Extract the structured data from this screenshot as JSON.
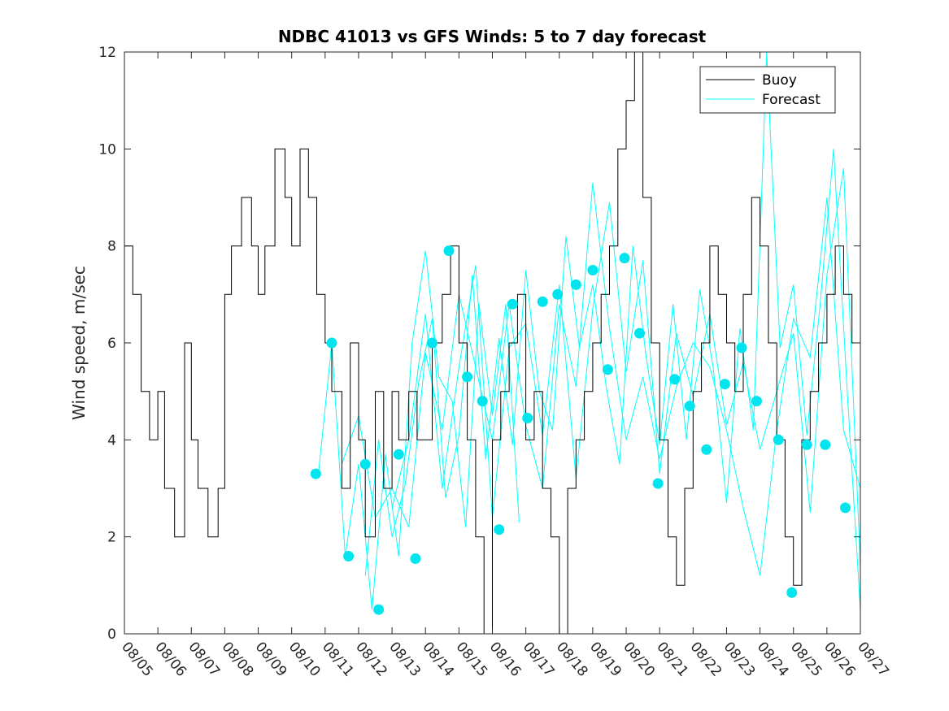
{
  "chart_data": {
    "type": "line",
    "title": "NDBC 41013 vs GFS Winds: 5 to 7 day forecast",
    "xlabel": "",
    "ylabel": "Wind speed, m/sec",
    "xlim": [
      0,
      22
    ],
    "ylim": [
      0,
      12
    ],
    "yticks": [
      0,
      2,
      4,
      6,
      8,
      10,
      12
    ],
    "ytick_labels": [
      "0",
      "2",
      "4",
      "6",
      "8",
      "10",
      "12"
    ],
    "xtick_labels": [
      "08/05",
      "08/06",
      "08/07",
      "08/08",
      "08/09",
      "08/10",
      "08/11",
      "08/12",
      "08/13",
      "08/14",
      "08/15",
      "08/16",
      "08/17",
      "08/18",
      "08/19",
      "08/20",
      "08/21",
      "08/22",
      "08/23",
      "08/24",
      "08/25",
      "08/26",
      "08/27"
    ],
    "x_unit": "days since 08/05 00Z",
    "legend": {
      "position": "top-right",
      "entries": [
        "Buoy",
        "Forecast"
      ]
    },
    "colors": {
      "buoy": "#000000",
      "forecast": "#00ffff",
      "marker": "#00e5ee",
      "axes": "#262626"
    },
    "series": [
      {
        "name": "Buoy",
        "style": "step",
        "x": [
          0.0,
          0.25,
          0.5,
          0.75,
          1.0,
          1.2,
          1.5,
          1.8,
          2.0,
          2.2,
          2.5,
          2.8,
          3.0,
          3.2,
          3.5,
          3.8,
          4.0,
          4.2,
          4.5,
          4.8,
          5.0,
          5.25,
          5.5,
          5.75,
          6.0,
          6.2,
          6.5,
          6.75,
          7.0,
          7.2,
          7.5,
          7.75,
          8.0,
          8.2,
          8.5,
          8.75,
          9.0,
          9.2,
          9.5,
          9.75,
          10.0,
          10.25,
          10.5,
          10.75,
          11.0,
          11.25,
          11.5,
          11.75,
          12.0,
          12.25,
          12.5,
          12.75,
          13.0,
          13.25,
          13.5,
          13.75,
          14.0,
          14.25,
          14.5,
          14.75,
          15.0,
          15.25,
          15.5,
          15.75,
          16.0,
          16.25,
          16.5,
          16.75,
          17.0,
          17.25,
          17.5,
          17.75,
          18.0,
          18.25,
          18.5,
          18.75,
          19.0,
          19.25,
          19.5,
          19.75,
          20.0,
          20.25,
          20.5,
          20.75,
          21.0,
          21.25,
          21.5,
          21.75,
          22.0
        ],
        "values": [
          8,
          7,
          5,
          4,
          5,
          3,
          2,
          6,
          4,
          3,
          2,
          3,
          7,
          8,
          9,
          8,
          7,
          8,
          10,
          9,
          8,
          10,
          9,
          7,
          6,
          5,
          3,
          6,
          4,
          2,
          5,
          3,
          5,
          4,
          5,
          4,
          4,
          6,
          7,
          8,
          6,
          4,
          2,
          0,
          4,
          5,
          6,
          7,
          4,
          5,
          3,
          2,
          0,
          3,
          4,
          5,
          6,
          7,
          8,
          10,
          11,
          12,
          9,
          6,
          4,
          2,
          1,
          3,
          5,
          6,
          8,
          7,
          6,
          5,
          7,
          9,
          8,
          6,
          4,
          2,
          1,
          4,
          5,
          6,
          7,
          8,
          7,
          6,
          5
        ],
        "visible_to_x": 22
      },
      {
        "name": "Forecast",
        "style": "ensemble-lines",
        "members": [
          {
            "x": [
              5.8,
              6.2,
              6.6,
              7.0,
              7.4,
              7.8,
              8.2,
              8.6,
              9.0,
              9.4,
              9.8,
              10.2,
              10.6,
              11.0,
              11.4,
              11.8
            ],
            "values": [
              3.3,
              6.0,
              1.6,
              3.5,
              0.5,
              3.7,
              1.6,
              6.0,
              7.9,
              5.3,
              4.8,
              2.2,
              6.8,
              4.5,
              6.8,
              2.3
            ]
          },
          {
            "x": [
              6.5,
              7.0,
              7.5,
              8.0,
              8.5,
              9.0,
              9.5,
              10.0,
              10.5,
              11.0,
              11.5,
              12.0,
              12.5,
              13.0,
              13.5,
              14.0,
              14.5,
              15.0,
              15.5,
              16.0,
              16.5,
              17.0,
              17.5,
              18.0,
              18.5,
              19.0,
              19.5,
              20.0,
              20.5,
              21.0,
              21.5,
              22.0
            ],
            "values": [
              3.5,
              4.5,
              2.4,
              3.0,
              2.2,
              5.8,
              4.2,
              7.0,
              5.5,
              4.0,
              6.8,
              4.3,
              3.0,
              6.8,
              5.1,
              9.3,
              6.3,
              4.0,
              5.3,
              3.6,
              5.1,
              6.0,
              5.5,
              4.2,
              2.6,
              1.2,
              4.2,
              6.5,
              5.7,
              9.0,
              4.2,
              3.0
            ]
          },
          {
            "x": [
              7.2,
              7.6,
              8.0,
              8.4,
              8.8,
              9.2,
              9.6,
              10.0,
              10.4,
              10.8,
              11.2,
              11.6,
              12.0,
              12.4,
              12.8,
              13.2,
              13.6,
              14.0,
              14.4,
              14.8,
              15.2,
              15.6,
              16.0,
              16.4,
              16.8,
              17.2,
              17.6,
              18.0,
              18.4,
              18.8,
              19.2,
              19.6,
              20.0,
              20.4,
              20.8,
              21.2,
              21.6,
              22.0
            ],
            "values": [
              1.2,
              4.0,
              2.0,
              3.1,
              5.2,
              6.5,
              2.8,
              4.1,
              7.4,
              3.6,
              6.1,
              3.9,
              7.5,
              5.0,
              4.2,
              8.2,
              5.9,
              7.2,
              5.1,
              3.5,
              8.0,
              5.7,
              3.9,
              6.8,
              4.0,
              7.1,
              5.5,
              2.7,
              6.3,
              4.2,
              12.0,
              5.9,
              7.2,
              4.1,
              6.8,
              10.0,
              5.1,
              0.5
            ]
          },
          {
            "x": [
              8.0,
              8.5,
              9.0,
              9.5,
              10.0,
              10.5,
              11.0,
              11.5,
              12.0,
              12.5,
              13.0,
              13.5,
              14.0,
              14.5,
              15.0,
              15.5,
              16.0,
              16.5,
              17.0,
              17.5,
              18.0,
              18.5,
              19.0,
              19.5,
              20.0,
              20.5,
              21.0,
              21.5,
              22.0
            ],
            "values": [
              2.6,
              4.0,
              6.6,
              3.0,
              5.5,
              7.6,
              2.4,
              5.9,
              6.4,
              4.1,
              7.2,
              3.2,
              6.7,
              8.9,
              5.4,
              7.7,
              3.3,
              6.2,
              4.9,
              6.6,
              4.3,
              5.6,
              3.8,
              5.0,
              6.2,
              2.5,
              7.4,
              9.6,
              1.4
            ]
          }
        ]
      },
      {
        "name": "Forecast markers",
        "style": "markers",
        "x": [
          5.72,
          6.2,
          6.7,
          7.2,
          7.6,
          8.2,
          8.7,
          9.2,
          9.7,
          10.25,
          10.7,
          11.2,
          11.6,
          12.05,
          12.5,
          12.95,
          13.5,
          14.0,
          14.45,
          14.95,
          15.4,
          15.95,
          16.45,
          16.9,
          17.4,
          17.95,
          18.45,
          18.9,
          19.55,
          19.95,
          20.4,
          20.95,
          21.55
        ],
        "values": [
          3.3,
          6.0,
          1.6,
          3.5,
          0.5,
          3.7,
          1.55,
          6.0,
          7.9,
          5.3,
          4.8,
          2.15,
          6.8,
          4.45,
          6.85,
          7.0,
          7.2,
          7.5,
          5.45,
          7.75,
          6.2,
          3.1,
          5.25,
          4.7,
          3.8,
          5.15,
          5.9,
          4.8,
          4.0,
          0.85,
          3.9,
          3.9,
          2.6
        ]
      }
    ]
  }
}
